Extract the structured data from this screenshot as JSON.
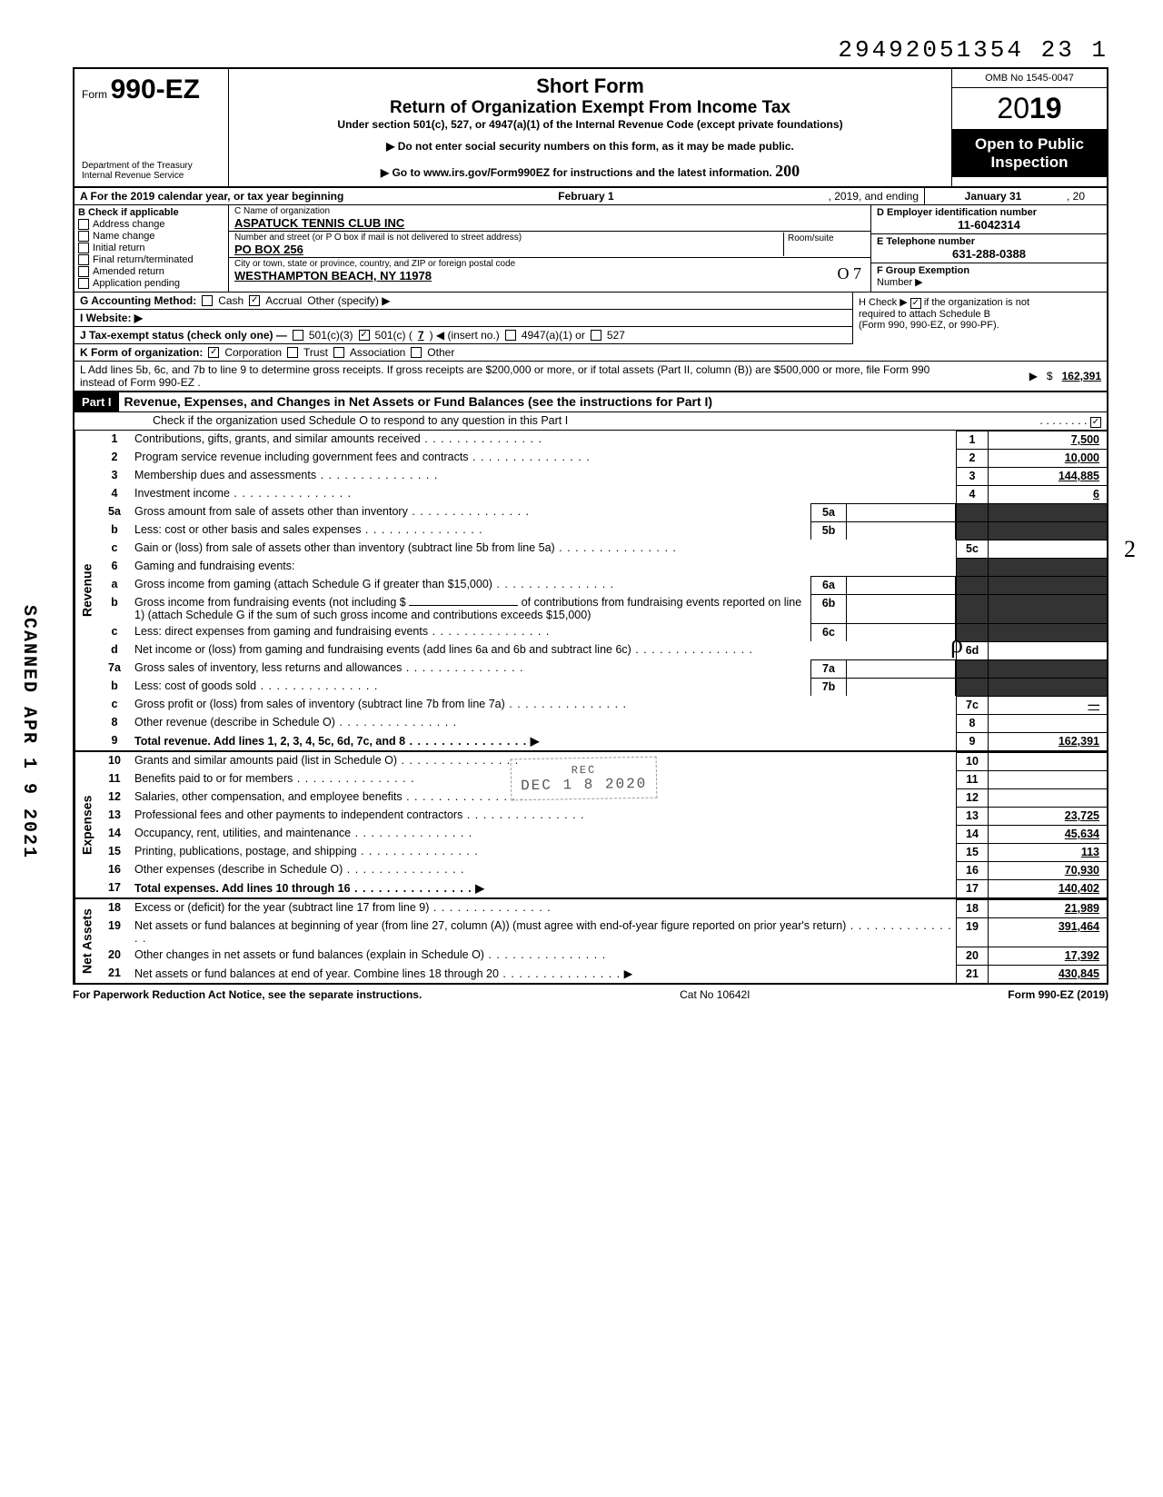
{
  "document_number": "29492051354 23  1",
  "header": {
    "form_prefix": "Form",
    "form_number": "990-EZ",
    "title1": "Short Form",
    "title2": "Return of Organization Exempt From Income Tax",
    "subtitle": "Under section 501(c), 527, or 4947(a)(1) of the Internal Revenue Code (except private foundations)",
    "note1": "Do not enter social security numbers on this form, as it may be made public.",
    "note2": "Go to www.irs.gov/Form990EZ for instructions and the latest information.",
    "dept1": "Department of the Treasury",
    "dept2": "Internal Revenue Service",
    "omb": "OMB No 1545-0047",
    "year_prefix": "20",
    "year_bold": "19",
    "inspect1": "Open to Public",
    "inspect2": "Inspection",
    "hand_note": "200"
  },
  "rowA": {
    "label": "A  For the 2019 calendar year, or tax year beginning",
    "begin": "February 1",
    "mid": ", 2019, and ending",
    "end": "January 31",
    "tail": ", 20"
  },
  "sectionB": {
    "label": "B  Check if applicable",
    "checks": [
      {
        "label": "Address change",
        "checked": false
      },
      {
        "label": "Name change",
        "checked": false
      },
      {
        "label": "Initial return",
        "checked": false
      },
      {
        "label": "Final return/terminated",
        "checked": false
      },
      {
        "label": "Amended return",
        "checked": false
      },
      {
        "label": "Application pending",
        "checked": false
      }
    ],
    "c_label": "C  Name of organization",
    "c_value": "ASPATUCK TENNIS CLUB INC",
    "addr_label": "Number and street (or P O  box if mail is not delivered to street address)",
    "addr_value": "PO BOX 256",
    "room_label": "Room/suite",
    "city_label": "City or town, state or province, country, and ZIP or foreign postal code",
    "city_value": "WESTHAMPTON BEACH, NY 11978",
    "hand_note": "O 7",
    "d_label": "D Employer identification number",
    "d_value": "11-6042314",
    "e_label": "E Telephone number",
    "e_value": "631-288-0388",
    "f_label": "F  Group Exemption",
    "f_label2": "Number ▶"
  },
  "rowG": {
    "label": "G  Accounting Method:",
    "cash": "Cash",
    "accrual": "Accrual",
    "other": "Other (specify) ▶",
    "h_label": "H  Check ▶",
    "h_tail": "if the organization is not",
    "h_line2": "required to attach Schedule B",
    "h_line3": "(Form 990, 990-EZ, or 990-PF)."
  },
  "rowI": {
    "label": "I   Website: ▶"
  },
  "rowJ": {
    "label": "J  Tax-exempt status (check only one) —",
    "c3": "501(c)(3)",
    "c": "501(c) (",
    "c_num": "7",
    "c_tail": ") ◀ (insert no.)",
    "a1": "4947(a)(1) or",
    "five27": "527"
  },
  "rowK": {
    "label": "K  Form of organization:",
    "corp": "Corporation",
    "trust": "Trust",
    "assoc": "Association",
    "other": "Other"
  },
  "rowL": {
    "text": "L  Add lines 5b, 6c, and 7b to line 9 to determine gross receipts. If gross receipts are $200,000 or more, or if total assets (Part II, column (B)) are $500,000 or more, file Form 990 instead of Form 990-EZ .",
    "value": "162,391"
  },
  "part1": {
    "badge": "Part I",
    "title": "Revenue, Expenses, and Changes in Net Assets or Fund Balances (see the instructions for Part I)",
    "check_line": "Check if the organization used Schedule O to respond to any question in this Part I"
  },
  "sections": {
    "revenue": "Revenue",
    "expenses": "Expenses",
    "netassets": "Net Assets"
  },
  "lines": {
    "l1": {
      "n": "1",
      "d": "Contributions, gifts, grants, and similar amounts received",
      "v": "7,500"
    },
    "l2": {
      "n": "2",
      "d": "Program service revenue including government fees and contracts",
      "v": "10,000"
    },
    "l3": {
      "n": "3",
      "d": "Membership dues and assessments",
      "v": "144,885"
    },
    "l4": {
      "n": "4",
      "d": "Investment income",
      "v": "6"
    },
    "l5a": {
      "n": "5a",
      "d": "Gross amount from sale of assets other than inventory",
      "sn": "5a"
    },
    "l5b": {
      "n": "b",
      "d": "Less: cost or other basis and sales expenses",
      "sn": "5b"
    },
    "l5c": {
      "n": "c",
      "d": "Gain or (loss) from sale of assets other than inventory (subtract line 5b from line 5a)",
      "rn": "5c"
    },
    "l6": {
      "n": "6",
      "d": "Gaming and fundraising events:"
    },
    "l6a": {
      "n": "a",
      "d": "Gross income from gaming (attach Schedule G if greater than $15,000)",
      "sn": "6a"
    },
    "l6b": {
      "n": "b",
      "d": "Gross income from fundraising events (not including  $",
      "d2": "of contributions from fundraising events reported on line 1) (attach Schedule G if the sum of such gross income and contributions exceeds $15,000)",
      "sn": "6b"
    },
    "l6c": {
      "n": "c",
      "d": "Less: direct expenses from gaming and fundraising events",
      "sn": "6c"
    },
    "l6d": {
      "n": "d",
      "d": "Net income or (loss) from gaming and fundraising events (add lines 6a and 6b and subtract line 6c)",
      "rn": "6d"
    },
    "l7a": {
      "n": "7a",
      "d": "Gross sales of inventory, less returns and allowances",
      "sn": "7a"
    },
    "l7b": {
      "n": "b",
      "d": "Less: cost of goods sold",
      "sn": "7b"
    },
    "l7c": {
      "n": "c",
      "d": "Gross profit or (loss) from sales of inventory (subtract line 7b from line 7a)",
      "rn": "7c",
      "v": "—"
    },
    "l8": {
      "n": "8",
      "d": "Other revenue (describe in Schedule O)",
      "rn": "8"
    },
    "l9": {
      "n": "9",
      "d": "Total revenue. Add lines 1, 2, 3, 4, 5c, 6d, 7c, and 8",
      "rn": "9",
      "v": "162,391",
      "bold": true
    },
    "l10": {
      "n": "10",
      "d": "Grants and similar amounts paid (list in Schedule O)",
      "rn": "10"
    },
    "l11": {
      "n": "11",
      "d": "Benefits paid to or for members",
      "rn": "11"
    },
    "l12": {
      "n": "12",
      "d": "Salaries, other compensation, and employee benefits",
      "rn": "12"
    },
    "l13": {
      "n": "13",
      "d": "Professional fees and other payments to independent contractors",
      "rn": "13",
      "v": "23,725"
    },
    "l14": {
      "n": "14",
      "d": "Occupancy, rent, utilities, and maintenance",
      "rn": "14",
      "v": "45,634"
    },
    "l15": {
      "n": "15",
      "d": "Printing, publications, postage, and shipping",
      "rn": "15",
      "v": "113"
    },
    "l16": {
      "n": "16",
      "d": "Other expenses (describe in Schedule O)",
      "rn": "16",
      "v": "70,930"
    },
    "l17": {
      "n": "17",
      "d": "Total expenses. Add lines 10 through 16",
      "rn": "17",
      "v": "140,402",
      "bold": true
    },
    "l18": {
      "n": "18",
      "d": "Excess or (deficit) for the year (subtract line 17 from line 9)",
      "rn": "18",
      "v": "21,989"
    },
    "l19": {
      "n": "19",
      "d": "Net assets or fund balances at beginning of year (from line 27, column (A)) (must agree with end-of-year figure reported on prior year's return)",
      "rn": "19",
      "v": "391,464"
    },
    "l20": {
      "n": "20",
      "d": "Other changes in net assets or fund balances (explain in Schedule O)",
      "rn": "20",
      "v": "17,392"
    },
    "l21": {
      "n": "21",
      "d": "Net assets or fund balances at end of year. Combine lines 18 through 20",
      "rn": "21",
      "v": "430,845"
    }
  },
  "footer": {
    "left": "For Paperwork Reduction Act Notice, see the separate instructions.",
    "mid": "Cat No  10642I",
    "right": "Form 990-EZ (2019)"
  },
  "stamps": {
    "scanned": "SCANNED APR 1 9 2021",
    "received": "DEC 1 8 2020",
    "rec_label": "REC"
  }
}
